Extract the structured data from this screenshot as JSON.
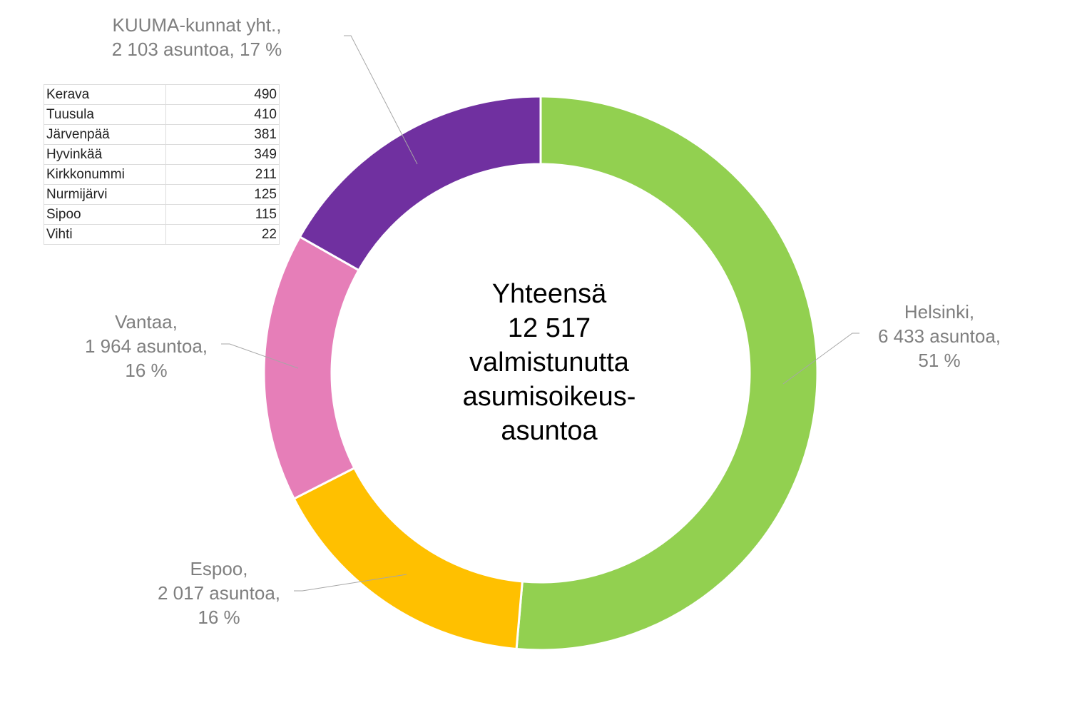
{
  "chart_data": {
    "type": "pie",
    "donut": true,
    "start": "top",
    "direction": "clockwise",
    "slices": [
      {
        "name": "Helsinki",
        "value": 6433,
        "percent": 51,
        "color": "#92d050",
        "label_lines": [
          "Helsinki,",
          "6 433 asuntoa,",
          "51 %"
        ]
      },
      {
        "name": "Espoo",
        "value": 2017,
        "percent": 16,
        "color": "#ffc000",
        "label_lines": [
          "Espoo,",
          "2 017 asuntoa,",
          "16 %"
        ]
      },
      {
        "name": "Vantaa",
        "value": 1964,
        "percent": 16,
        "color": "#e67eb8",
        "label_lines": [
          "Vantaa,",
          "1 964 asuntoa,",
          "16 %"
        ]
      },
      {
        "name": "KUUMA-kunnat yht.",
        "value": 2103,
        "percent": 17,
        "color": "#7030a0",
        "label_lines": [
          "KUUMA-kunnat yht.,",
          "2 103 asuntoa, 17 %"
        ]
      }
    ],
    "center_text": [
      "Yhteensä",
      "12 517",
      "valmistunutta",
      "asumisoikeus-",
      "asuntoa"
    ],
    "table": [
      [
        "Kerava",
        "490"
      ],
      [
        "Tuusula",
        "410"
      ],
      [
        "Järvenpää",
        "381"
      ],
      [
        "Hyvinkää",
        "349"
      ],
      [
        "Kirkkonummi",
        "211"
      ],
      [
        "Nurmijärvi",
        "125"
      ],
      [
        "Sipoo",
        "115"
      ],
      [
        "Vihti",
        "22"
      ]
    ]
  }
}
